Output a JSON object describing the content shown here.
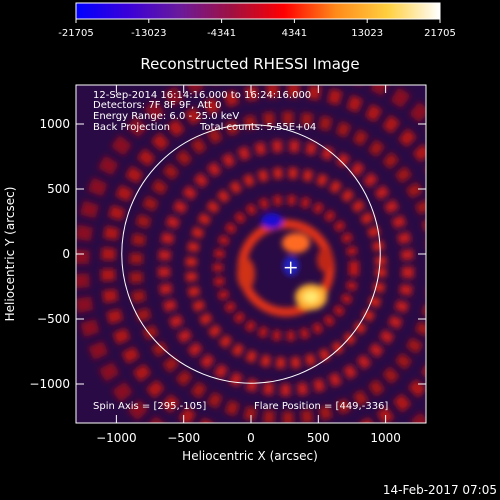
{
  "colorbar": {
    "ticks": [
      "-21705",
      "-13023",
      "-4341",
      "4341",
      "13023",
      "21705"
    ],
    "stops": [
      "#0000ff",
      "#3a00d8",
      "#6a1a9a",
      "#a01040",
      "#ff0000",
      "#ff8a1a",
      "#ffd040",
      "#ffffff"
    ]
  },
  "plot": {
    "title": "Reconstructed RHESSI Image",
    "xlabel": "Heliocentric X (arcsec)",
    "ylabel": "Heliocentric Y (arcsec)",
    "xlim": [
      -1300,
      1300
    ],
    "ylim": [
      -1300,
      1300
    ],
    "xticks": [
      -1000,
      -500,
      0,
      500,
      1000
    ],
    "yticks": [
      -1000,
      -500,
      0,
      500,
      1000
    ],
    "xtick_labels": [
      "−1000",
      "−500",
      "0",
      "500",
      "1000"
    ],
    "ytick_labels": [
      "−1000",
      "−500",
      "0",
      "500",
      "1000"
    ],
    "solar_radius": 960,
    "spin_axis": [
      295,
      -105
    ],
    "flare_position": [
      449,
      -336
    ]
  },
  "annotations": {
    "time_range": "12-Sep-2014 16:14:16.000 to 16:24:16.000",
    "detectors": "Detectors: 7F 8F 9F, Att 0",
    "energy": "Energy Range: 6.0 - 25.0 keV",
    "method": "Back Projection",
    "counts": "Total counts: 5.55E+04",
    "spin_axis_label": "Spin Axis = [295,-105]",
    "flare_position_label": "Flare Position = [449,-336]"
  },
  "footer": {
    "timestamp": "14-Feb-2017 07:05"
  }
}
